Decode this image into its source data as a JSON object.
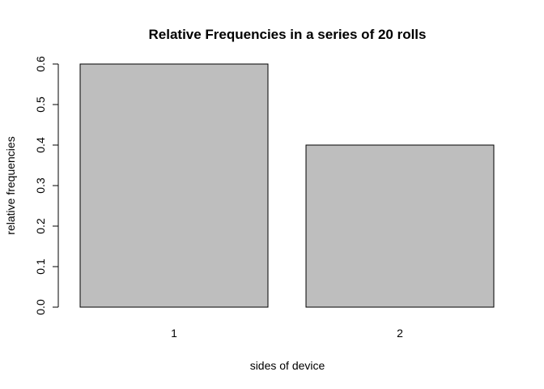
{
  "chart_data": {
    "type": "bar",
    "title": "Relative Frequencies in a series of 20 rolls",
    "xlabel": "sides of device",
    "ylabel": "relative frequencies",
    "categories": [
      "1",
      "2"
    ],
    "values": [
      0.6,
      0.4
    ],
    "ylim": [
      0,
      0.6
    ],
    "yticks": [
      "0.0",
      "0.1",
      "0.2",
      "0.3",
      "0.4",
      "0.5",
      "0.6"
    ],
    "grid": false,
    "bar_color": "#bebebe",
    "bar_border_color": "#000000"
  }
}
